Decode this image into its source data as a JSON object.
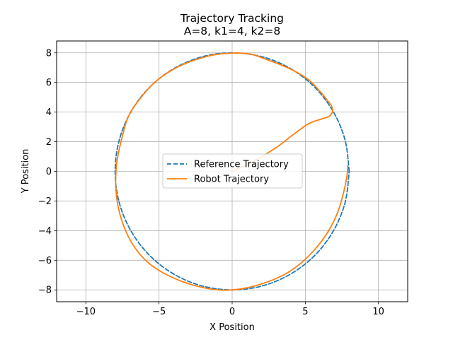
{
  "chart_data": {
    "type": "line",
    "title": "Trajectory Tracking",
    "subtitle": "A=8, k1=4, k2=8",
    "xlabel": "X Position",
    "ylabel": "Y Position",
    "xlim": [
      -12,
      12
    ],
    "ylim": [
      -8.8,
      8.8
    ],
    "xticks": [
      -10,
      -5,
      0,
      5,
      10
    ],
    "yticks": [
      -8,
      -6,
      -4,
      -2,
      0,
      2,
      4,
      6,
      8
    ],
    "xtick_labels": [
      "−10",
      "−5",
      "0",
      "5",
      "10"
    ],
    "ytick_labels": [
      "−8",
      "−6",
      "−4",
      "−2",
      "0",
      "2",
      "4",
      "6",
      "8"
    ],
    "grid": true,
    "legend_position": "center",
    "series": [
      {
        "name": "Reference Trajectory",
        "color": "#1f77b4",
        "style": "dashed",
        "x": [
          8,
          7.73,
          6.93,
          5.66,
          4,
          2.07,
          0,
          -2.07,
          -4,
          -5.66,
          -6.93,
          -7.73,
          -8,
          -7.73,
          -6.93,
          -5.66,
          -4,
          -2.07,
          0,
          2.07,
          4,
          5.66,
          6.93,
          7.73,
          8
        ],
        "y": [
          0,
          2.07,
          4,
          5.66,
          6.93,
          7.73,
          8,
          7.73,
          6.93,
          5.66,
          4,
          2.07,
          0,
          -2.07,
          -4,
          -5.66,
          -6.93,
          -7.73,
          -8,
          -7.73,
          -6.93,
          -5.66,
          -4,
          -2.07,
          0
        ]
      },
      {
        "name": "Robot Trajectory",
        "color": "#ff7f0e",
        "style": "solid",
        "x": [
          0,
          1.5,
          3.0,
          4.2,
          5.2,
          6.0,
          6.6,
          6.85,
          6.8,
          6.5,
          6.0,
          5.2,
          4.0,
          2.5,
          1.0,
          -1.0,
          -2.6,
          -4.0,
          -5.3,
          -6.3,
          -7.1,
          -7.6,
          -7.9,
          -7.95,
          -7.7,
          -7.1,
          -6.3,
          -5.3,
          -4.0,
          -2.6,
          -1.0,
          0.5,
          2.0,
          3.5,
          4.7,
          5.8,
          6.6,
          7.2,
          7.6,
          7.85,
          7.9
        ],
        "y": [
          0,
          0.7,
          1.6,
          2.5,
          3.2,
          3.5,
          3.7,
          4.0,
          4.4,
          4.8,
          5.4,
          6.2,
          6.9,
          7.5,
          7.95,
          7.9,
          7.5,
          6.9,
          6.0,
          4.9,
          3.7,
          2.0,
          0.5,
          -1.2,
          -2.8,
          -4.4,
          -5.6,
          -6.5,
          -7.2,
          -7.7,
          -8.0,
          -7.95,
          -7.6,
          -7.0,
          -6.2,
          -5.1,
          -4.0,
          -2.8,
          -1.5,
          -0.3,
          0.4
        ]
      }
    ]
  }
}
